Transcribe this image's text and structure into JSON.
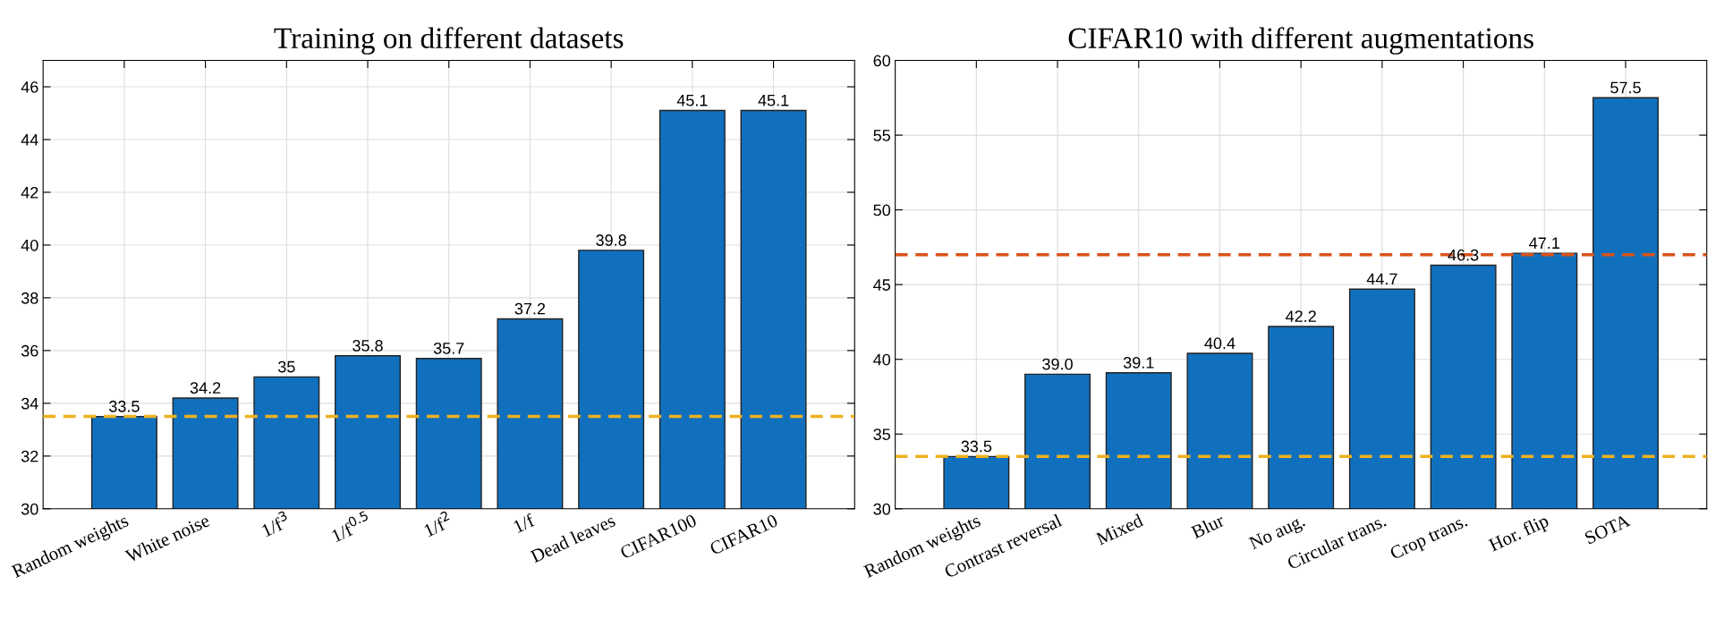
{
  "chart_data": [
    {
      "type": "bar",
      "title": "Training on different datasets",
      "categories": [
        "Random weights",
        "White noise",
        "1/f$^{3}$",
        "1/f$^{0.5}$",
        "1/f$^{2}$",
        "1/f",
        "Dead leaves",
        "CIFAR100",
        "CIFAR10"
      ],
      "values": [
        33.5,
        34.2,
        35,
        35.8,
        35.7,
        37.2,
        39.8,
        45.1,
        45.1
      ],
      "color": "#1170be",
      "value_labels": [
        "33.5",
        "34.2",
        "35",
        "35.8",
        "35.7",
        "37.2",
        "39.8",
        "45.1",
        "45.1"
      ],
      "ylim": [
        30,
        47
      ],
      "yticks": [
        30,
        32,
        34,
        36,
        38,
        40,
        42,
        44,
        46
      ],
      "grid": true,
      "ref_lines": [
        {
          "axis": "y",
          "value": 33.5,
          "color": "#edb120",
          "line_style": "dashed"
        }
      ]
    },
    {
      "type": "bar",
      "title": "CIFAR10 with different augmentations",
      "categories": [
        "Random weights",
        "Contrast reversal",
        "Mixed",
        "Blur",
        "No aug.",
        "Circular trans.",
        "Crop trans.",
        "Hor. flip",
        "SOTA"
      ],
      "values": [
        33.5,
        39.0,
        39.1,
        40.4,
        42.2,
        44.7,
        46.3,
        47.1,
        57.5
      ],
      "color": "#1170be",
      "value_labels": [
        "33.5",
        "39.0",
        "39.1",
        "40.4",
        "42.2",
        "44.7",
        "46.3",
        "47.1",
        "57.5"
      ],
      "ylim": [
        30,
        60
      ],
      "yticks": [
        30,
        35,
        40,
        45,
        50,
        55,
        60
      ],
      "grid": true,
      "ref_lines": [
        {
          "axis": "y",
          "value": 47,
          "color": "#d95319",
          "line_style": "dashed"
        },
        {
          "axis": "y",
          "value": 33.5,
          "color": "#edb120",
          "line_style": "dashed"
        }
      ]
    }
  ]
}
